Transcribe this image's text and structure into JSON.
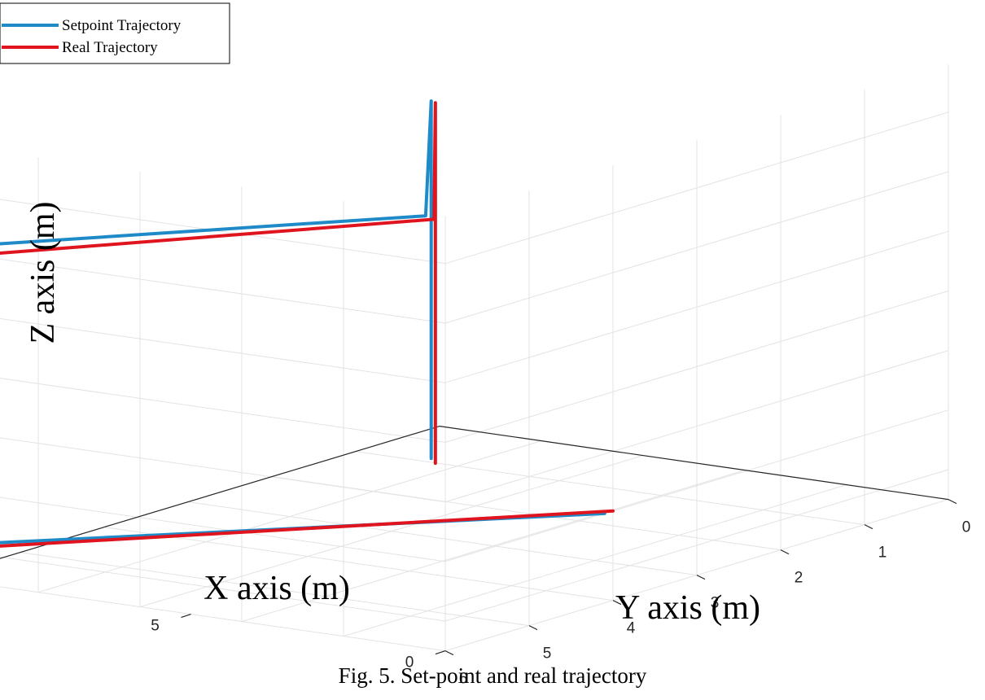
{
  "caption": "Fig. 5. Set-point and real trajectory",
  "chart_data": {
    "type": "line3d",
    "xlabel": "X axis (m)",
    "ylabel": "Y axis (m)",
    "zlabel": "Z axis (m)",
    "xlim": [
      0,
      10
    ],
    "ylim": [
      0,
      6
    ],
    "zlim": [
      0,
      5
    ],
    "xticks": [
      "0",
      "5",
      "10"
    ],
    "yticks": [
      "0",
      "1",
      "2",
      "3",
      "4",
      "5",
      "6"
    ],
    "zticks": [
      "0",
      "1",
      "2",
      "3",
      "4",
      "5"
    ],
    "grid": true,
    "legend_position": "top-left",
    "series": [
      {
        "name": "Setpoint Trajectory",
        "color": "#1f8ac8",
        "points": [
          [
            0,
            4.1,
            1
          ],
          [
            10,
            5.9,
            0
          ],
          [
            10,
            5.9,
            5
          ],
          [
            5,
            3.2,
            5
          ],
          [
            10,
            0.1,
            5
          ],
          [
            10,
            0.1,
            -1
          ]
        ]
      },
      {
        "name": "Real Trajectory",
        "color": "#e0141e",
        "points": [
          [
            0,
            4.0,
            1
          ],
          [
            10,
            5.8,
            -0.1
          ],
          [
            10,
            5.8,
            4.8
          ],
          [
            5,
            3.1,
            4.9
          ],
          [
            10,
            0.05,
            4.95
          ],
          [
            10,
            0.05,
            -1.1
          ]
        ]
      }
    ]
  }
}
